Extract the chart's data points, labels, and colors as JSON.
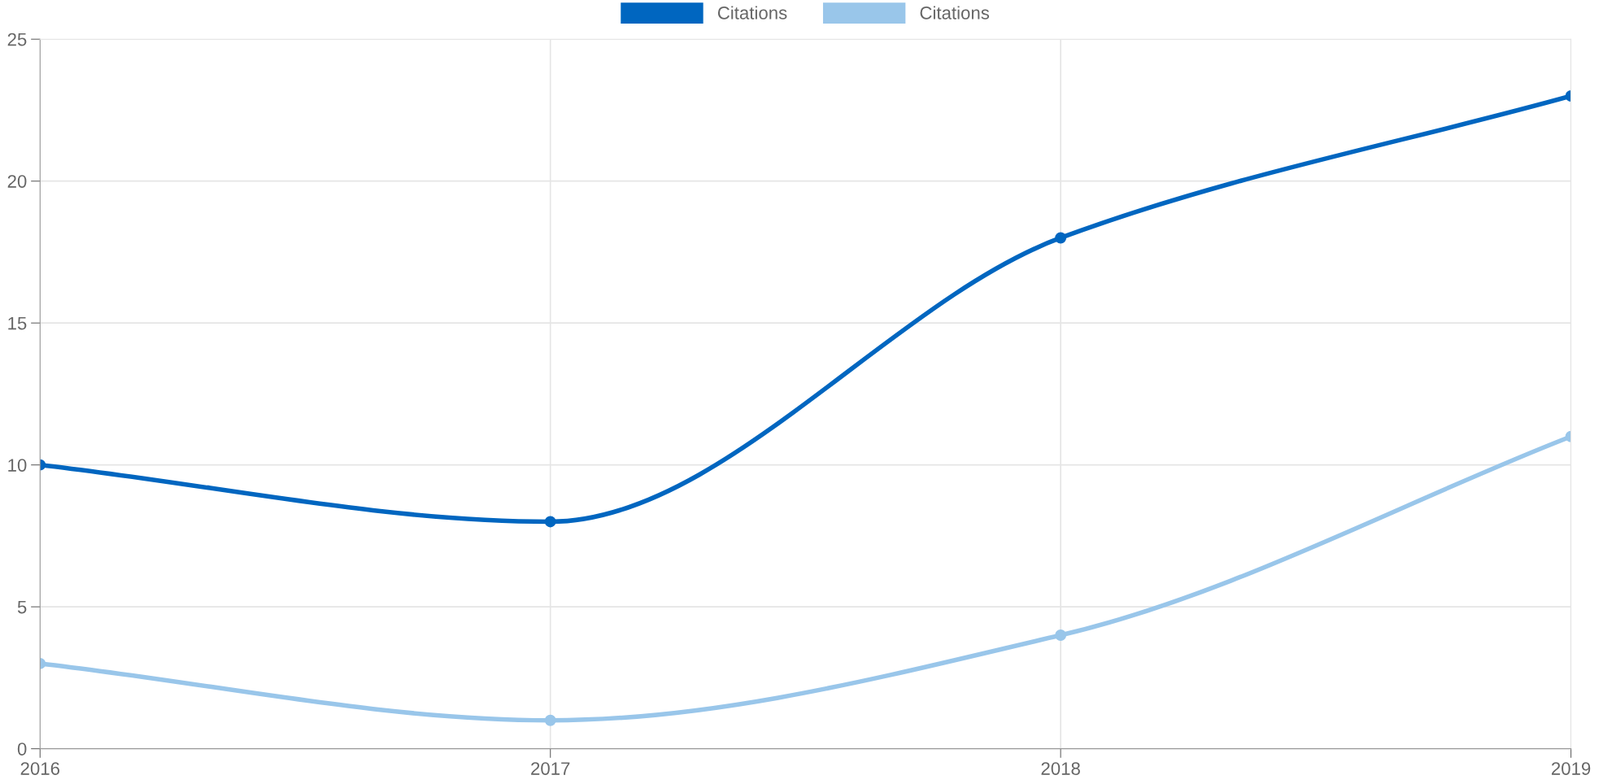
{
  "chart_data": {
    "type": "line",
    "x": [
      2016,
      2017,
      2018,
      2019
    ],
    "series": [
      {
        "name": "Citations",
        "color": "#0066c0",
        "values": [
          10,
          8,
          18,
          23
        ]
      },
      {
        "name": "Citations",
        "color": "#99c6ea",
        "values": [
          3,
          1,
          4,
          11
        ]
      }
    ],
    "xlim": [
      2016,
      2019
    ],
    "xticks": [
      2016,
      2017,
      2018,
      2019
    ],
    "ylim": [
      0,
      25
    ],
    "yticks": [
      0,
      5,
      10,
      15,
      20,
      25
    ],
    "grid": true,
    "legend": "top",
    "marker": "circle",
    "line_style": "solid"
  }
}
